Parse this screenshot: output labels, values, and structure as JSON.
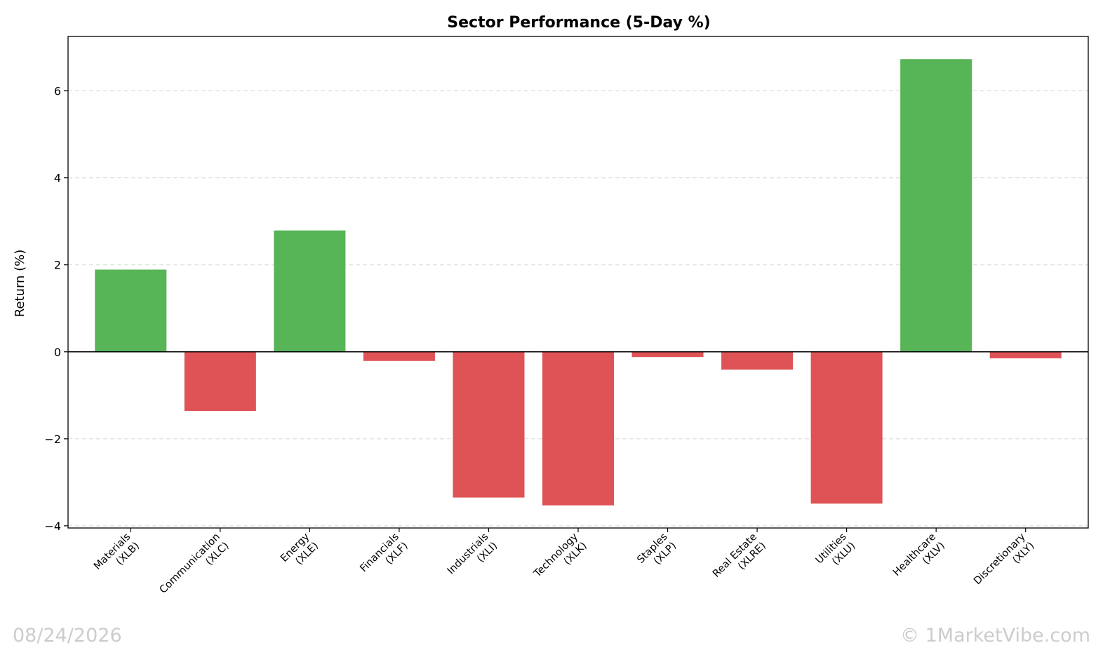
{
  "chart_data": {
    "type": "bar",
    "title": "Sector Performance (5-Day %)",
    "xlabel": "",
    "ylabel": "Return (%)",
    "ylim": [
      -4.05,
      7.25
    ],
    "yticks": [
      -4,
      -2,
      0,
      2,
      4,
      6
    ],
    "ytick_labels": [
      "−4",
      "−2",
      "0",
      "2",
      "4",
      "6"
    ],
    "grid": "y-dashed",
    "categories": [
      [
        "Materials",
        "(XLB)"
      ],
      [
        "Communication",
        "(XLC)"
      ],
      [
        "Energy",
        "(XLE)"
      ],
      [
        "Financials",
        "(XLF)"
      ],
      [
        "Industrials",
        "(XLI)"
      ],
      [
        "Technology",
        "(XLK)"
      ],
      [
        "Staples",
        "(XLP)"
      ],
      [
        "Real Estate",
        "(XLRE)"
      ],
      [
        "Utilities",
        "(XLU)"
      ],
      [
        "Healthcare",
        "(XLV)"
      ],
      [
        "Discretionary",
        "(XLY)"
      ]
    ],
    "values": [
      1.89,
      -1.36,
      2.79,
      -0.21,
      -3.35,
      -3.53,
      -0.12,
      -0.41,
      -3.49,
      6.73,
      -0.15
    ],
    "colors": {
      "positive": "#57b457",
      "negative": "#df5356"
    }
  },
  "footer": {
    "date": "08/24/2026",
    "credit": "© 1MarketVibe.com"
  }
}
